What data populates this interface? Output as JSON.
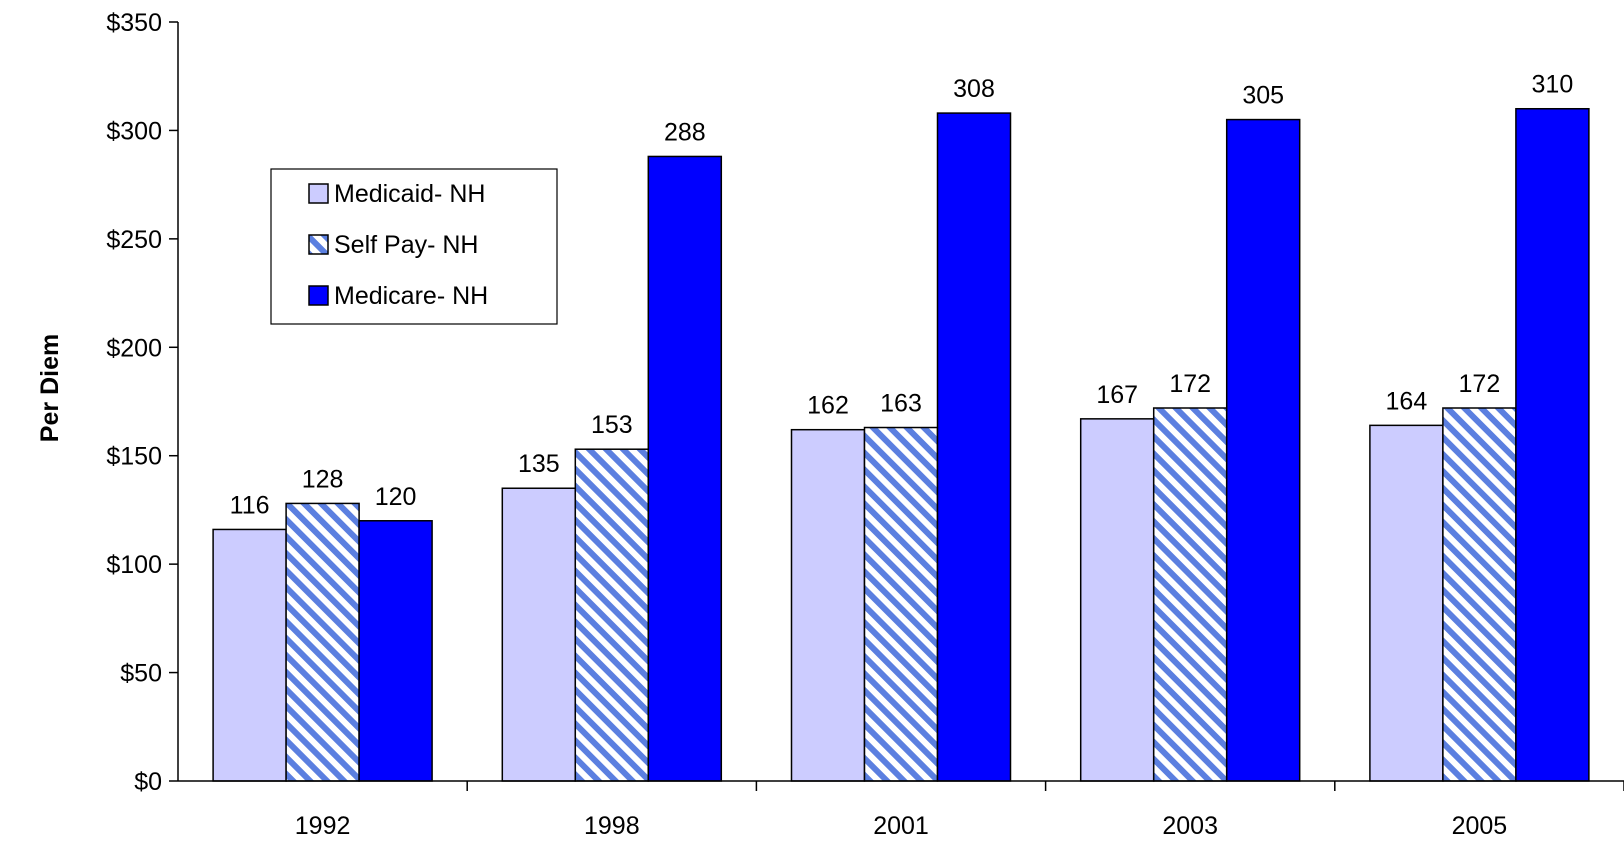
{
  "chart_data": {
    "type": "bar",
    "title": "",
    "xlabel": "",
    "ylabel": "Per Diem",
    "categories": [
      "1992",
      "1998",
      "2001",
      "2003",
      "2005"
    ],
    "ylim": [
      0,
      350
    ],
    "yticks": [
      0,
      50,
      100,
      150,
      200,
      250,
      300,
      350
    ],
    "ytick_labels": [
      "$0",
      "$50",
      "$100",
      "$150",
      "$200",
      "$250",
      "$300",
      "$350"
    ],
    "grid": false,
    "legend_position": "upper-left",
    "series": [
      {
        "name": "Medicaid- NH",
        "values": [
          116,
          135,
          162,
          167,
          164
        ],
        "color": "#ccccff",
        "pattern": "solid"
      },
      {
        "name": "Self Pay- NH",
        "values": [
          128,
          153,
          163,
          172,
          172
        ],
        "color": "#5b7fe0",
        "pattern": "diagonal-stripes"
      },
      {
        "name": "Medicare- NH",
        "values": [
          120,
          288,
          308,
          305,
          310
        ],
        "color": "#0000ff",
        "pattern": "solid"
      }
    ]
  }
}
